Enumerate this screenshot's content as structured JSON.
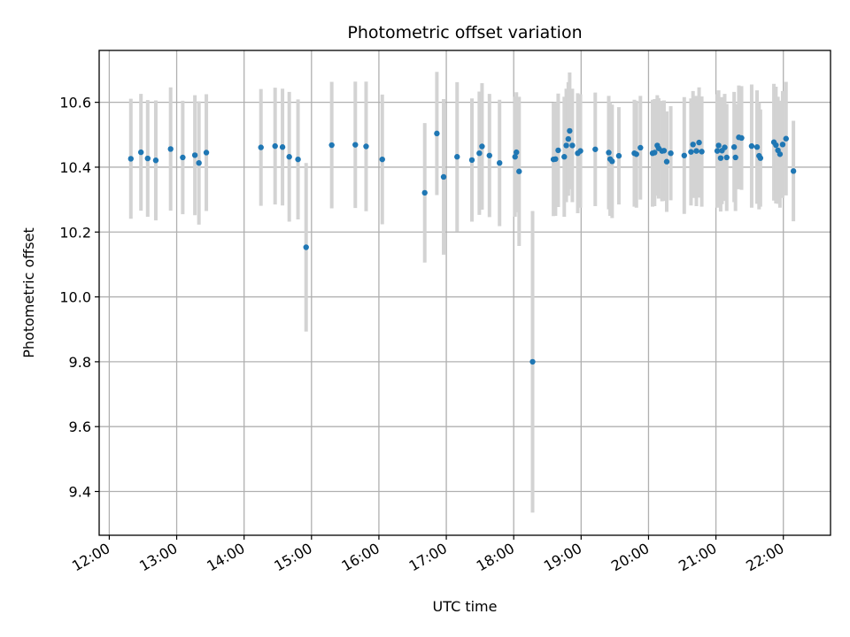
{
  "chart_data": {
    "type": "scatter",
    "title": "Photometric offset variation",
    "xlabel": "UTC time",
    "ylabel": "Photometric offset",
    "x_unit": "hour (UTC, decimal)",
    "xlim": [
      11.85,
      22.7
    ],
    "ylim": [
      9.265,
      10.76
    ],
    "x_ticks": [
      12,
      13,
      14,
      15,
      16,
      17,
      18,
      19,
      20,
      21,
      22
    ],
    "x_tick_labels": [
      "12:00",
      "13:00",
      "14:00",
      "15:00",
      "16:00",
      "17:00",
      "18:00",
      "19:00",
      "20:00",
      "21:00",
      "22:00"
    ],
    "y_ticks": [
      9.4,
      9.6,
      9.8,
      10.0,
      10.2,
      10.4,
      10.6
    ],
    "y_tick_labels": [
      "9.4",
      "9.6",
      "9.8",
      "10.0",
      "10.2",
      "10.4",
      "10.6"
    ],
    "grid": true,
    "marker_color": "#1f77b4",
    "errorbar_color": "#d3d3d3",
    "series": [
      {
        "x": [
          12.32,
          12.47,
          12.57,
          12.69,
          12.91,
          13.09,
          13.27,
          13.33,
          13.44,
          14.25,
          14.46,
          14.57,
          14.67,
          14.8,
          14.92,
          15.3,
          15.65,
          15.81,
          16.05,
          16.68,
          16.86,
          16.96,
          17.16,
          17.38,
          17.49,
          17.53,
          17.64,
          17.79,
          18.02,
          18.04,
          18.08,
          18.28,
          18.59,
          18.62,
          18.66,
          18.75,
          18.78,
          18.81,
          18.83,
          18.87,
          18.95,
          18.99,
          19.21,
          19.41,
          19.43,
          19.46,
          19.56,
          19.79,
          19.82,
          19.88,
          20.06,
          20.09,
          20.13,
          20.15,
          20.2,
          20.23,
          20.27,
          20.33,
          20.53,
          20.63,
          20.66,
          20.71,
          20.75,
          20.79,
          21.02,
          21.04,
          21.07,
          21.09,
          21.13,
          21.16,
          21.27,
          21.29,
          21.34,
          21.38,
          21.53,
          21.61,
          21.64,
          21.66,
          21.86,
          21.89,
          21.92,
          21.95,
          21.99,
          22.04,
          22.15
        ],
        "y": [
          10.426,
          10.446,
          10.427,
          10.421,
          10.456,
          10.43,
          10.437,
          10.413,
          10.445,
          10.461,
          10.465,
          10.462,
          10.432,
          10.424,
          10.153,
          10.468,
          10.469,
          10.464,
          10.424,
          10.321,
          10.504,
          10.37,
          10.432,
          10.422,
          10.443,
          10.464,
          10.436,
          10.413,
          10.432,
          10.446,
          10.387,
          9.8,
          10.424,
          10.425,
          10.452,
          10.432,
          10.467,
          10.487,
          10.512,
          10.467,
          10.443,
          10.45,
          10.455,
          10.445,
          10.425,
          10.418,
          10.435,
          10.443,
          10.44,
          10.46,
          10.443,
          10.445,
          10.467,
          10.458,
          10.45,
          10.451,
          10.417,
          10.443,
          10.436,
          10.447,
          10.47,
          10.45,
          10.476,
          10.448,
          10.45,
          10.467,
          10.428,
          10.451,
          10.461,
          10.43,
          10.462,
          10.43,
          10.492,
          10.49,
          10.465,
          10.462,
          10.435,
          10.428,
          10.477,
          10.468,
          10.452,
          10.44,
          10.47,
          10.488,
          10.388
        ],
        "err": [
          0.185,
          0.18,
          0.18,
          0.185,
          0.19,
          0.175,
          0.185,
          0.19,
          0.18,
          0.18,
          0.18,
          0.18,
          0.2,
          0.185,
          0.26,
          0.195,
          0.195,
          0.2,
          0.2,
          0.215,
          0.19,
          0.24,
          0.23,
          0.19,
          0.19,
          0.195,
          0.19,
          0.195,
          0.185,
          0.185,
          0.23,
          0.465,
          0.175,
          0.175,
          0.175,
          0.185,
          0.175,
          0.175,
          0.18,
          0.175,
          0.185,
          0.175,
          0.175,
          0.175,
          0.175,
          0.175,
          0.15,
          0.165,
          0.165,
          0.16,
          0.165,
          0.165,
          0.155,
          0.155,
          0.155,
          0.155,
          0.155,
          0.145,
          0.18,
          0.165,
          0.165,
          0.17,
          0.17,
          0.17,
          0.175,
          0.17,
          0.165,
          0.165,
          0.165,
          0.165,
          0.17,
          0.165,
          0.16,
          0.16,
          0.19,
          0.175,
          0.165,
          0.15,
          0.18,
          0.18,
          0.165,
          0.165,
          0.165,
          0.175,
          0.155
        ]
      }
    ]
  }
}
